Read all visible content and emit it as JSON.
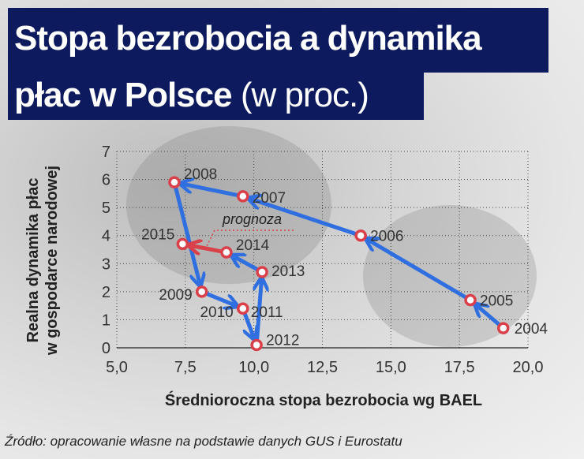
{
  "title": {
    "line1": "Stopa bezrobocia a dynamika",
    "line2_bold": "płac w Polsce",
    "line2_normal": "(w proc.)"
  },
  "source": "Źródło: opracowanie własne na podstawie danych GUS i Eurostatu",
  "colors": {
    "title_bg": "#0e1a5e",
    "actual_line": "#2f6fe0",
    "forecast_line": "#d9404a",
    "marker": "#d9404a"
  },
  "chart_data": {
    "type": "scatter",
    "connected": true,
    "xlabel": "Średnioroczna stopa bezrobocia wg BAEL",
    "ylabel_line1": "Realna dynamika płac",
    "ylabel_line2": "w gospodarce narodowej",
    "xlim": [
      5,
      20
    ],
    "ylim": [
      0,
      7
    ],
    "xticks": [
      "5,0",
      "7,5",
      "10,0",
      "12,5",
      "15,0",
      "17,5",
      "20,0"
    ],
    "yticks": [
      "0",
      "1",
      "2",
      "3",
      "4",
      "5",
      "6",
      "7"
    ],
    "grid": true,
    "annotation": "prognoza",
    "points": [
      {
        "label": "2004",
        "x": 19.1,
        "y": 0.7
      },
      {
        "label": "2005",
        "x": 17.9,
        "y": 1.7
      },
      {
        "label": "2006",
        "x": 13.9,
        "y": 4.0
      },
      {
        "label": "2007",
        "x": 9.6,
        "y": 5.4
      },
      {
        "label": "2008",
        "x": 7.1,
        "y": 5.9
      },
      {
        "label": "2009",
        "x": 8.1,
        "y": 2.0
      },
      {
        "label": "2010",
        "x": 9.6,
        "y": 1.4
      },
      {
        "label": "2011",
        "x": 9.6,
        "y": 1.4
      },
      {
        "label": "2012",
        "x": 10.1,
        "y": 0.1
      },
      {
        "label": "2013",
        "x": 10.3,
        "y": 2.7
      },
      {
        "label": "2014",
        "x": 9.0,
        "y": 3.4
      },
      {
        "label": "2015",
        "x": 7.4,
        "y": 3.7,
        "forecast": true
      }
    ]
  }
}
